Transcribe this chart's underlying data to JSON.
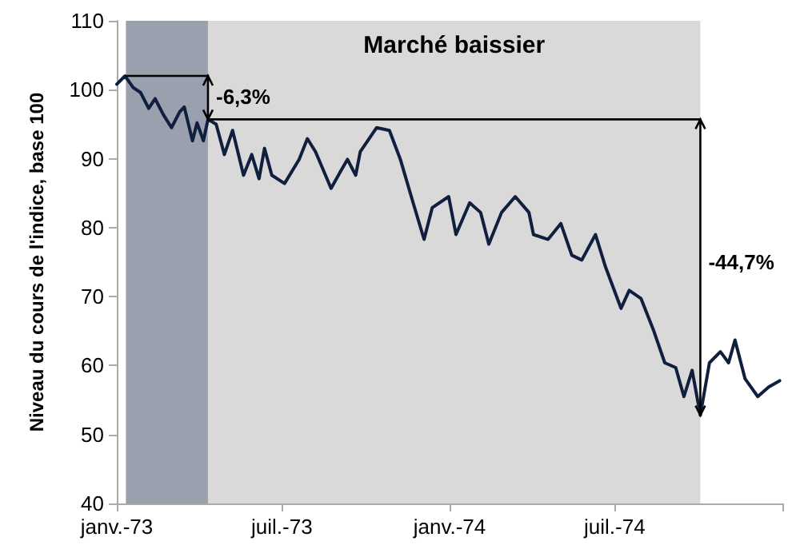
{
  "chart_data": {
    "type": "line",
    "ylabel": "Niveau du cours de l'indice, base 100",
    "x": [
      "1973-01-01",
      "1973-01-10",
      "1973-01-19",
      "1973-01-27",
      "1973-02-05",
      "1973-02-12",
      "1973-02-21",
      "1973-03-02",
      "1973-03-11",
      "1973-03-16",
      "1973-03-25",
      "1973-03-30",
      "1973-04-06",
      "1973-04-11",
      "1973-04-20",
      "1973-04-29",
      "1973-05-08",
      "1973-05-20",
      "1973-05-29",
      "1973-06-06",
      "1973-06-12",
      "1973-06-20",
      "1973-07-04",
      "1973-07-20",
      "1973-07-29",
      "1973-08-07",
      "1973-08-24",
      "1973-09-04",
      "1973-09-11",
      "1973-09-20",
      "1973-09-25",
      "1973-10-13",
      "1973-10-27",
      "1973-11-08",
      "1973-11-22",
      "1973-12-04",
      "1973-12-13",
      "1973-12-31",
      "1974-01-08",
      "1974-01-23",
      "1974-02-04",
      "1974-02-13",
      "1974-02-27",
      "1974-03-14",
      "1974-03-29",
      "1974-04-03",
      "1974-04-19",
      "1974-05-03",
      "1974-05-15",
      "1974-05-26",
      "1974-06-10",
      "1974-06-21",
      "1974-07-08",
      "1974-07-17",
      "1974-07-30",
      "1974-08-13",
      "1974-08-25",
      "1974-09-06",
      "1974-09-15",
      "1974-09-24",
      "1974-10-03",
      "1974-10-13",
      "1974-10-25",
      "1974-11-03",
      "1974-11-10",
      "1974-11-21",
      "1974-12-05",
      "1974-12-17",
      "1974-12-29"
    ],
    "series": [
      {
        "color": "#0f1f3d",
        "values": [
          100.8,
          102,
          100.3,
          99.6,
          97.3,
          98.7,
          96.4,
          94.5,
          96.8,
          97.5,
          92.6,
          95.2,
          92.6,
          95.7,
          95,
          90.6,
          94.1,
          87.6,
          90.6,
          87.1,
          91.5,
          87.6,
          86.4,
          89.9,
          92.9,
          91,
          85.7,
          88.3,
          89.9,
          87.6,
          91,
          94.5,
          94.1,
          89.9,
          83.6,
          78.3,
          82.9,
          84.5,
          79,
          83.6,
          82.2,
          77.6,
          82.2,
          84.5,
          82.2,
          79,
          78.3,
          80.6,
          76,
          75.3,
          79,
          74.3,
          68.3,
          70.9,
          69.7,
          65,
          60.4,
          59.7,
          55.5,
          59.3,
          52.8,
          60.4,
          62,
          60.4,
          63.7,
          58.1,
          55.5,
          56.9,
          57.8
        ]
      }
    ],
    "xlim": [
      "1973-01-01",
      "1975-01-01"
    ],
    "xticks": [
      {
        "value": "1973-01-01",
        "label": "janv.-73"
      },
      {
        "value": "1973-07-01",
        "label": "juil.-73"
      },
      {
        "value": "1974-01-01",
        "label": "janv.-74"
      },
      {
        "value": "1974-07-01",
        "label": "juil.-74"
      },
      {
        "value": "1975-01-01",
        "label": null
      }
    ],
    "ylim": [
      40,
      110
    ],
    "yticks": [
      40,
      50,
      60,
      70,
      80,
      90,
      100,
      110
    ],
    "bands": [
      {
        "axis": "x",
        "from": "1973-01-11",
        "to": "1973-04-11",
        "color": "#9aa0ae"
      },
      {
        "axis": "x",
        "from": "1973-04-11",
        "to": "1974-10-03",
        "color": "#d9d9d9",
        "label": "Marché baissier"
      }
    ],
    "annotations": [
      {
        "text": "-6,3%",
        "x": "1973-04-11",
        "y": 99
      },
      {
        "text": "-44,7%",
        "x": "1974-10-03",
        "y": 75
      }
    ],
    "grid": false,
    "marker": "none",
    "line_style": "solid"
  }
}
